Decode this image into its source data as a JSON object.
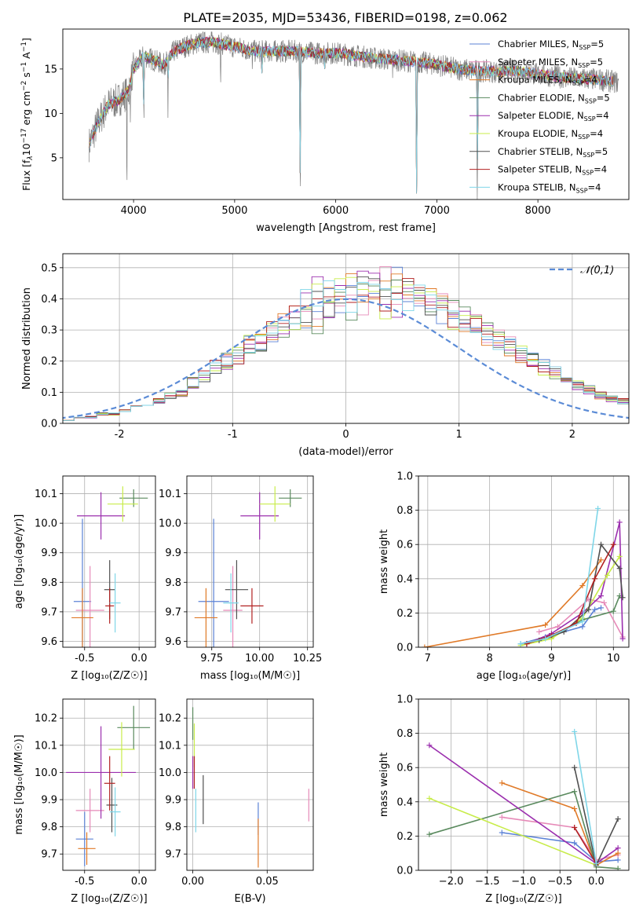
{
  "title": "PLATE=2035, MJD=53436, FIBERID=0198, z=0.062",
  "colors": {
    "chabrier_miles": "#5b82d6",
    "salpeter_miles": "#e68ab8",
    "kroupa_miles": "#e07a28",
    "chabrier_elodie": "#5a8a5e",
    "salpeter_elodie": "#9b2fae",
    "kroupa_elodie": "#c8ec4a",
    "chabrier_stelib": "#505050",
    "salpeter_stelib": "#b22222",
    "kroupa_stelib": "#7fd6e8",
    "data": "#808080",
    "gaussian": "#5b8bd6"
  },
  "legend_models": [
    {
      "key": "chabrier_miles",
      "label": "Chabrier MILES, N",
      "nssp": "=5"
    },
    {
      "key": "salpeter_miles",
      "label": "Salpeter MILES, N",
      "nssp": "=5"
    },
    {
      "key": "kroupa_miles",
      "label": "Kroupa MILES, N",
      "nssp": "=4"
    },
    {
      "key": "chabrier_elodie",
      "label": "Chabrier ELODIE, N",
      "nssp": "=5"
    },
    {
      "key": "salpeter_elodie",
      "label": "Salpeter ELODIE, N",
      "nssp": "=4"
    },
    {
      "key": "kroupa_elodie",
      "label": "Kroupa ELODIE, N",
      "nssp": "=4"
    },
    {
      "key": "chabrier_stelib",
      "label": "Chabrier STELIB, N",
      "nssp": "=5"
    },
    {
      "key": "salpeter_stelib",
      "label": "Salpeter STELIB, N",
      "nssp": "=4"
    },
    {
      "key": "kroupa_stelib",
      "label": "Kroupa STELIB, N",
      "nssp": "=4"
    }
  ],
  "legend_sub": "SSP",
  "chart_data": [
    {
      "type": "line",
      "id": "spectrum",
      "xlabel": "wavelength [Angstrom, rest frame]",
      "ylabel": "Flux [f",
      "ylabel_sub": "λ",
      "ylabel_rest": "10",
      "ylabel_exp": "−17",
      "ylabel_units": " erg cm",
      "ylabel_exp2": "−2",
      "ylabel_s": " s",
      "ylabel_exp3": "−1",
      "ylabel_a": " A",
      "ylabel_exp4": "−1",
      "ylabel_end": "]",
      "xlim": [
        3300,
        8900
      ],
      "ylim": [
        0.3,
        19.5
      ],
      "xticks": [
        4000,
        5000,
        6000,
        7000,
        8000
      ],
      "yticks": [
        5,
        10,
        15
      ],
      "continuum": [
        [
          3560,
          6.5
        ],
        [
          3650,
          9
        ],
        [
          3750,
          11
        ],
        [
          3850,
          11.5
        ],
        [
          3950,
          12.5
        ],
        [
          4000,
          15
        ],
        [
          4100,
          16.5
        ],
        [
          4200,
          16
        ],
        [
          4300,
          15.5
        ],
        [
          4400,
          17
        ],
        [
          4500,
          17.5
        ],
        [
          4650,
          18
        ],
        [
          4800,
          18
        ],
        [
          5000,
          17.5
        ],
        [
          5200,
          17
        ],
        [
          5400,
          17
        ],
        [
          5600,
          17
        ],
        [
          5800,
          16.8
        ],
        [
          6000,
          16.8
        ],
        [
          6200,
          16.5
        ],
        [
          6400,
          16.2
        ],
        [
          6600,
          16
        ],
        [
          6800,
          15.8
        ],
        [
          7000,
          15.5
        ],
        [
          7200,
          15
        ],
        [
          7400,
          14.8
        ],
        [
          7600,
          14.7
        ],
        [
          7800,
          14.8
        ],
        [
          8000,
          14.4
        ],
        [
          8300,
          14
        ],
        [
          8600,
          13.8
        ],
        [
          8800,
          13.5
        ]
      ],
      "absorption_lines": [
        [
          3934,
          1.0
        ],
        [
          3968,
          9.0
        ],
        [
          4102,
          8.0
        ],
        [
          4340,
          9.5
        ],
        [
          4861,
          12.0
        ],
        [
          5175,
          13.5
        ],
        [
          5270,
          14.5
        ],
        [
          5650,
          0.3
        ],
        [
          5890,
          13.5
        ],
        [
          6563,
          14.0
        ],
        [
          6800,
          1.0
        ],
        [
          7400,
          0.3
        ]
      ]
    },
    {
      "type": "bar",
      "id": "residuals",
      "xlabel": "(data-model)/error",
      "ylabel": "Normed distribution",
      "xlim": [
        -2.5,
        2.5
      ],
      "ylim": [
        0,
        0.545
      ],
      "xticks": [
        -2,
        -1,
        0,
        1,
        2
      ],
      "yticks": [
        0.0,
        0.1,
        0.2,
        0.3,
        0.4,
        0.5
      ],
      "gaussian_label": "𝒩(0,1)",
      "bin_edges_start": -2.6,
      "bin_width": 0.1,
      "base_values": [
        0.01,
        0.01,
        0.02,
        0.02,
        0.03,
        0.03,
        0.04,
        0.05,
        0.06,
        0.07,
        0.09,
        0.1,
        0.13,
        0.15,
        0.18,
        0.2,
        0.22,
        0.25,
        0.27,
        0.29,
        0.31,
        0.34,
        0.36,
        0.38,
        0.4,
        0.41,
        0.42,
        0.42,
        0.43,
        0.42,
        0.42,
        0.41,
        0.4,
        0.38,
        0.37,
        0.35,
        0.33,
        0.31,
        0.29,
        0.27,
        0.25,
        0.22,
        0.2,
        0.18,
        0.16,
        0.14,
        0.12,
        0.11,
        0.09,
        0.08,
        0.07,
        0.06,
        0.05,
        0.04,
        0.03
      ]
    },
    {
      "type": "scatter",
      "id": "age_vs_Z",
      "xlabel": "Z [log₁₀(Z/Z☉)]",
      "ylabel": "age  [log₁₀(age/yr)]",
      "xlim": [
        -0.7,
        0.15
      ],
      "ylim": [
        9.58,
        10.16
      ],
      "xticks": [
        -0.5,
        0.0
      ],
      "yticks": [
        9.6,
        9.7,
        9.8,
        9.9,
        10.0,
        10.1
      ],
      "points": [
        {
          "key": "chabrier_miles",
          "x": -0.52,
          "y": 9.735,
          "xerr": 0.08,
          "yerr": 0.28
        },
        {
          "key": "salpeter_miles",
          "x": -0.45,
          "y": 9.705,
          "xerr": 0.13,
          "yerr": 0.15
        },
        {
          "key": "kroupa_miles",
          "x": -0.52,
          "y": 9.68,
          "xerr": 0.1,
          "yerr": 0.1
        },
        {
          "key": "chabrier_elodie",
          "x": -0.05,
          "y": 10.085,
          "xerr": 0.13,
          "yerr": 0.03
        },
        {
          "key": "salpeter_elodie",
          "x": -0.35,
          "y": 10.025,
          "xerr": 0.22,
          "yerr": 0.08
        },
        {
          "key": "kroupa_elodie",
          "x": -0.15,
          "y": 10.065,
          "xerr": 0.14,
          "yerr": 0.06
        },
        {
          "key": "chabrier_stelib",
          "x": -0.27,
          "y": 9.775,
          "xerr": 0.05,
          "yerr": 0.1
        },
        {
          "key": "salpeter_stelib",
          "x": -0.27,
          "y": 9.72,
          "xerr": 0.04,
          "yerr": 0.06
        },
        {
          "key": "kroupa_stelib",
          "x": -0.22,
          "y": 9.73,
          "xerr": 0.05,
          "yerr": 0.1
        }
      ]
    },
    {
      "type": "scatter",
      "id": "age_vs_mass",
      "xlabel": "mass [log₁₀(M/M☉)]",
      "ylabel": "",
      "xlim": [
        9.62,
        10.28
      ],
      "ylim": [
        9.58,
        10.16
      ],
      "xticks": [
        9.75,
        10.0,
        10.25
      ],
      "yticks": [
        9.6,
        9.7,
        9.8,
        9.9,
        10.0,
        10.1
      ],
      "points": [
        {
          "key": "chabrier_miles",
          "x": 9.76,
          "y": 9.735,
          "xerr": 0.08,
          "yerr": 0.28
        },
        {
          "key": "salpeter_miles",
          "x": 9.86,
          "y": 9.705,
          "xerr": 0.05,
          "yerr": 0.15
        },
        {
          "key": "kroupa_miles",
          "x": 9.72,
          "y": 9.68,
          "xerr": 0.06,
          "yerr": 0.1
        },
        {
          "key": "chabrier_elodie",
          "x": 10.16,
          "y": 10.085,
          "xerr": 0.06,
          "yerr": 0.03
        },
        {
          "key": "salpeter_elodie",
          "x": 10.0,
          "y": 10.025,
          "xerr": 0.1,
          "yerr": 0.08
        },
        {
          "key": "kroupa_elodie",
          "x": 10.08,
          "y": 10.065,
          "xerr": 0.08,
          "yerr": 0.06
        },
        {
          "key": "chabrier_stelib",
          "x": 9.88,
          "y": 9.775,
          "xerr": 0.06,
          "yerr": 0.1
        },
        {
          "key": "salpeter_stelib",
          "x": 9.96,
          "y": 9.72,
          "xerr": 0.06,
          "yerr": 0.06
        },
        {
          "key": "kroupa_stelib",
          "x": 9.85,
          "y": 9.73,
          "xerr": 0.04,
          "yerr": 0.1
        }
      ]
    },
    {
      "type": "line",
      "id": "mw_vs_age",
      "xlabel": "age  [log₁₀(age/yr)]",
      "ylabel": "mass weight",
      "xlim": [
        6.85,
        10.25
      ],
      "ylim": [
        0,
        1.0
      ],
      "xticks": [
        7,
        8,
        9,
        10
      ],
      "yticks": [
        0.0,
        0.2,
        0.4,
        0.6,
        0.8,
        1.0
      ],
      "series": [
        {
          "key": "chabrier_miles",
          "points": [
            [
              8.5,
              0.02
            ],
            [
              8.9,
              0.06
            ],
            [
              9.5,
              0.12
            ],
            [
              9.7,
              0.22
            ],
            [
              9.8,
              0.23
            ]
          ]
        },
        {
          "key": "salpeter_miles",
          "points": [
            [
              8.8,
              0.09
            ],
            [
              9.1,
              0.12
            ],
            [
              9.6,
              0.28
            ],
            [
              9.85,
              0.26
            ],
            [
              10.15,
              0.06
            ]
          ]
        },
        {
          "key": "kroupa_miles",
          "points": [
            [
              6.95,
              0.0
            ],
            [
              8.9,
              0.13
            ],
            [
              9.5,
              0.36
            ],
            [
              9.8,
              0.51
            ]
          ]
        },
        {
          "key": "chabrier_elodie",
          "points": [
            [
              8.6,
              0.02
            ],
            [
              9.0,
              0.06
            ],
            [
              9.5,
              0.16
            ],
            [
              10.0,
              0.21
            ],
            [
              10.1,
              0.3
            ]
          ]
        },
        {
          "key": "salpeter_elodie",
          "points": [
            [
              8.6,
              0.02
            ],
            [
              9.0,
              0.08
            ],
            [
              9.5,
              0.2
            ],
            [
              9.8,
              0.3
            ],
            [
              10.1,
              0.73
            ],
            [
              10.15,
              0.05
            ]
          ]
        },
        {
          "key": "kroupa_elodie",
          "points": [
            [
              8.5,
              0.01
            ],
            [
              9.0,
              0.05
            ],
            [
              9.5,
              0.17
            ],
            [
              9.9,
              0.42
            ],
            [
              10.1,
              0.53
            ]
          ]
        },
        {
          "key": "chabrier_stelib",
          "points": [
            [
              8.8,
              0.04
            ],
            [
              9.2,
              0.09
            ],
            [
              9.6,
              0.22
            ],
            [
              9.8,
              0.6
            ],
            [
              10.1,
              0.46
            ],
            [
              10.15,
              0.29
            ]
          ]
        },
        {
          "key": "salpeter_stelib",
          "points": [
            [
              8.6,
              0.02
            ],
            [
              9.0,
              0.07
            ],
            [
              9.4,
              0.14
            ],
            [
              9.7,
              0.4
            ],
            [
              10.0,
              0.6
            ]
          ]
        },
        {
          "key": "kroupa_stelib",
          "points": [
            [
              8.5,
              0.02
            ],
            [
              8.9,
              0.05
            ],
            [
              9.5,
              0.15
            ],
            [
              9.75,
              0.81
            ]
          ]
        }
      ]
    },
    {
      "type": "scatter",
      "id": "mass_vs_Z",
      "xlabel": "Z [log₁₀(Z/Z☉)]",
      "ylabel": "mass [log₁₀(M/M☉)]",
      "xlim": [
        -0.7,
        0.15
      ],
      "ylim": [
        9.64,
        10.27
      ],
      "xticks": [
        -0.5,
        0.0
      ],
      "yticks": [
        9.7,
        9.8,
        9.9,
        10.0,
        10.1,
        10.2
      ],
      "points": [
        {
          "key": "chabrier_miles",
          "x": -0.5,
          "y": 9.755,
          "xerr": 0.08,
          "yerr": 0.1
        },
        {
          "key": "salpeter_miles",
          "x": -0.45,
          "y": 9.86,
          "xerr": 0.13,
          "yerr": 0.08
        },
        {
          "key": "kroupa_miles",
          "x": -0.48,
          "y": 9.72,
          "xerr": 0.08,
          "yerr": 0.06
        },
        {
          "key": "chabrier_elodie",
          "x": -0.05,
          "y": 10.165,
          "xerr": 0.15,
          "yerr": 0.08
        },
        {
          "key": "salpeter_elodie",
          "x": -0.35,
          "y": 10.0,
          "xerr": 0.32,
          "yerr": 0.17
        },
        {
          "key": "kroupa_elodie",
          "x": -0.16,
          "y": 10.085,
          "xerr": 0.12,
          "yerr": 0.1
        },
        {
          "key": "chabrier_stelib",
          "x": -0.25,
          "y": 9.88,
          "xerr": 0.05,
          "yerr": 0.1
        },
        {
          "key": "salpeter_stelib",
          "x": -0.27,
          "y": 9.96,
          "xerr": 0.05,
          "yerr": 0.1
        },
        {
          "key": "kroupa_stelib",
          "x": -0.22,
          "y": 9.855,
          "xerr": 0.05,
          "yerr": 0.09
        }
      ]
    },
    {
      "type": "scatter",
      "id": "mass_vs_ebv",
      "xlabel": "E(B-V)",
      "ylabel": "",
      "xlim": [
        -0.004,
        0.081
      ],
      "ylim": [
        9.64,
        10.27
      ],
      "xticks": [
        0.0,
        0.05
      ],
      "yticks": [
        9.7,
        9.8,
        9.9,
        10.0,
        10.1,
        10.2
      ],
      "points": [
        {
          "key": "chabrier_miles",
          "x": 0.044,
          "y": 9.83,
          "xerr": 0,
          "yerr": 0.06
        },
        {
          "key": "salpeter_miles",
          "x": 0.078,
          "y": 9.88,
          "xerr": 0,
          "yerr": 0.06
        },
        {
          "key": "kroupa_miles",
          "x": 0.044,
          "y": 9.74,
          "xerr": 0,
          "yerr": 0.09
        },
        {
          "key": "chabrier_elodie",
          "x": 0.0,
          "y": 10.18,
          "xerr": 0,
          "yerr": 0.06
        },
        {
          "key": "salpeter_elodie",
          "x": 0.0,
          "y": 10.0,
          "xerr": 0,
          "yerr": 0.06
        },
        {
          "key": "kroupa_elodie",
          "x": 0.001,
          "y": 10.1,
          "xerr": 0,
          "yerr": 0.08
        },
        {
          "key": "chabrier_stelib",
          "x": 0.007,
          "y": 9.9,
          "xerr": 0,
          "yerr": 0.09
        },
        {
          "key": "salpeter_stelib",
          "x": 0.001,
          "y": 10.0,
          "xerr": 0,
          "yerr": 0.06
        },
        {
          "key": "kroupa_stelib",
          "x": 0.002,
          "y": 9.86,
          "xerr": 0,
          "yerr": 0.08
        }
      ]
    },
    {
      "type": "line",
      "id": "mw_vs_Z",
      "xlabel": "Z [log₁₀(Z/Z☉)]",
      "ylabel": "mass weight",
      "xlim": [
        -2.45,
        0.45
      ],
      "ylim": [
        0,
        1.0
      ],
      "xticks": [
        -2.0,
        -1.5,
        -1.0,
        -0.5,
        0.0
      ],
      "yticks": [
        0.0,
        0.2,
        0.4,
        0.6,
        0.8,
        1.0
      ],
      "series": [
        {
          "key": "chabrier_miles",
          "points": [
            [
              -1.3,
              0.22
            ],
            [
              -0.3,
              0.16
            ],
            [
              0.0,
              0.05
            ],
            [
              0.3,
              0.06
            ]
          ]
        },
        {
          "key": "salpeter_miles",
          "points": [
            [
              -1.3,
              0.31
            ],
            [
              -0.3,
              0.25
            ],
            [
              0.0,
              0.06
            ],
            [
              0.3,
              0.09
            ]
          ]
        },
        {
          "key": "kroupa_miles",
          "points": [
            [
              -1.3,
              0.51
            ],
            [
              -0.3,
              0.36
            ],
            [
              0.0,
              0.03
            ],
            [
              0.3,
              0.1
            ]
          ]
        },
        {
          "key": "chabrier_elodie",
          "points": [
            [
              -2.3,
              0.21
            ],
            [
              -0.3,
              0.46
            ],
            [
              0.0,
              0.02
            ],
            [
              0.3,
              0.01
            ]
          ]
        },
        {
          "key": "salpeter_elodie",
          "points": [
            [
              -2.3,
              0.73
            ],
            [
              0.0,
              0.04
            ],
            [
              0.3,
              0.13
            ]
          ]
        },
        {
          "key": "kroupa_elodie",
          "points": [
            [
              -2.3,
              0.42
            ],
            [
              0.0,
              0.03
            ]
          ]
        },
        {
          "key": "chabrier_stelib",
          "points": [
            [
              -0.3,
              0.6
            ],
            [
              0.0,
              0.03
            ],
            [
              0.3,
              0.3
            ]
          ]
        },
        {
          "key": "salpeter_stelib",
          "points": [
            [
              -0.3,
              0.25
            ],
            [
              0.0,
              0.04
            ]
          ]
        },
        {
          "key": "kroupa_stelib",
          "points": [
            [
              -0.3,
              0.81
            ],
            [
              0.0,
              0.04
            ]
          ]
        }
      ]
    }
  ]
}
